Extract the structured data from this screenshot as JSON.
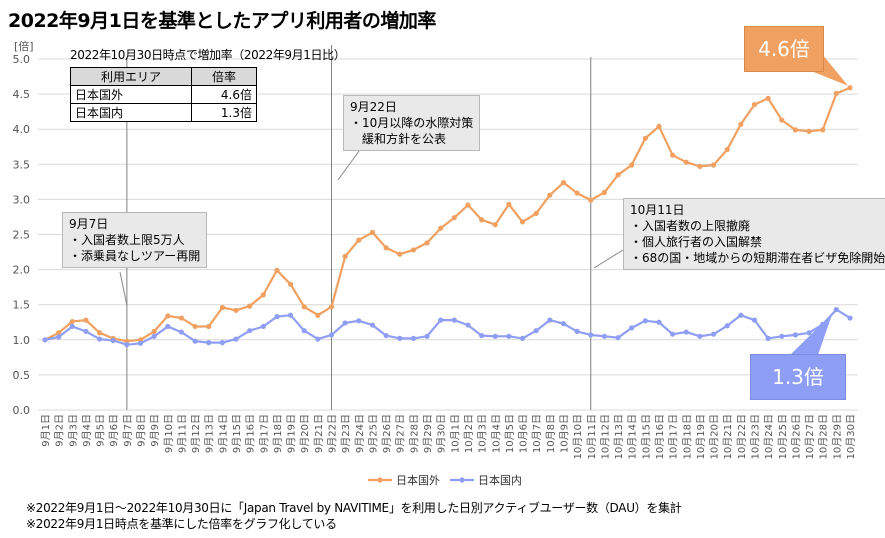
{
  "chart_data": {
    "type": "line",
    "title": "2022年9月1日を基準としたアプリ利用者の増加率",
    "ylabel": "[倍]",
    "xlabel": "",
    "ylim": [
      0,
      5
    ],
    "yticks": [
      "0.0",
      "0.5",
      "1.0",
      "1.5",
      "2.0",
      "2.5",
      "3.0",
      "3.5",
      "4.0",
      "4.5",
      "5.0"
    ],
    "grid": true,
    "legend_position": "bottom-center",
    "categories": [
      "9月1日",
      "9月2日",
      "9月3日",
      "9月4日",
      "9月5日",
      "9月6日",
      "9月7日",
      "9月8日",
      "9月9日",
      "9月10日",
      "9月11日",
      "9月12日",
      "9月13日",
      "9月14日",
      "9月15日",
      "9月16日",
      "9月17日",
      "9月18日",
      "9月19日",
      "9月20日",
      "9月21日",
      "9月22日",
      "9月23日",
      "9月24日",
      "9月25日",
      "9月26日",
      "9月27日",
      "9月28日",
      "9月29日",
      "9月30日",
      "10月1日",
      "10月2日",
      "10月3日",
      "10月4日",
      "10月5日",
      "10月6日",
      "10月7日",
      "10月8日",
      "10月9日",
      "10月10日",
      "10月11日",
      "10月12日",
      "10月13日",
      "10月14日",
      "10月15日",
      "10月16日",
      "10月17日",
      "10月18日",
      "10月19日",
      "10月20日",
      "10月21日",
      "10月22日",
      "10月23日",
      "10月24日",
      "10月25日",
      "10月26日",
      "10月27日",
      "10月28日",
      "10月29日",
      "10月30日"
    ],
    "series": [
      {
        "name": "日本国外",
        "color": "#f0a060",
        "values": [
          1.0,
          1.1,
          1.26,
          1.28,
          1.1,
          1.02,
          0.98,
          1.0,
          1.12,
          1.34,
          1.31,
          1.19,
          1.19,
          1.46,
          1.42,
          1.48,
          1.64,
          1.99,
          1.79,
          1.47,
          1.35,
          1.47,
          2.19,
          2.42,
          2.53,
          2.31,
          2.22,
          2.28,
          2.38,
          2.59,
          2.74,
          2.92,
          2.71,
          2.64,
          2.93,
          2.68,
          2.8,
          3.06,
          3.24,
          3.09,
          2.99,
          3.1,
          3.35,
          3.49,
          3.87,
          4.04,
          3.63,
          3.53,
          3.47,
          3.49,
          3.71,
          4.07,
          4.35,
          4.44,
          4.13,
          3.99,
          3.97,
          3.99,
          4.51,
          4.59
        ]
      },
      {
        "name": "日本国内",
        "color": "#8f9ef5",
        "values": [
          1.0,
          1.04,
          1.19,
          1.12,
          1.01,
          0.99,
          0.93,
          0.95,
          1.05,
          1.19,
          1.11,
          0.98,
          0.96,
          0.96,
          1.01,
          1.13,
          1.19,
          1.33,
          1.35,
          1.13,
          1.01,
          1.07,
          1.24,
          1.27,
          1.21,
          1.06,
          1.02,
          1.02,
          1.05,
          1.28,
          1.28,
          1.21,
          1.06,
          1.05,
          1.05,
          1.02,
          1.13,
          1.28,
          1.23,
          1.12,
          1.07,
          1.05,
          1.03,
          1.17,
          1.27,
          1.25,
          1.08,
          1.11,
          1.05,
          1.08,
          1.2,
          1.35,
          1.28,
          1.02,
          1.05,
          1.07,
          1.1,
          1.22,
          1.43,
          1.31
        ]
      }
    ],
    "annotations": [
      {
        "date": "9月7日",
        "label": "9月7日",
        "lines": [
          "・入国者数上限5万人",
          "・添乗員なしツアー再開"
        ]
      },
      {
        "date": "9月22日",
        "label": "9月22日",
        "lines": [
          "・10月以降の水際対策",
          "　緩和方針を公表"
        ]
      },
      {
        "date": "10月11日",
        "label": "10月11日",
        "lines": [
          "・入国者数の上限撤廃",
          "・個人旅行者の入国解禁",
          "・68の国・地域からの短期滞在者ビザ免除開始"
        ]
      }
    ]
  },
  "table": {
    "caption": "2022年10月30日時点で増加率（2022年9月1日比）",
    "headers": [
      "利用エリア",
      "倍率"
    ],
    "rows": [
      {
        "area": "日本国外",
        "rate": "4.6倍"
      },
      {
        "area": "日本国内",
        "rate": "1.3倍"
      }
    ]
  },
  "callouts": {
    "foreign": "4.6倍",
    "domestic": "1.3倍"
  },
  "footnotes": [
    "※2022年9月1日～2022年10月30日に「Japan Travel by NAVITIME」を利用した日別アクティブユーザー数（DAU）を集計",
    "※2022年9月1日時点を基準にした倍率をグラフ化している"
  ]
}
